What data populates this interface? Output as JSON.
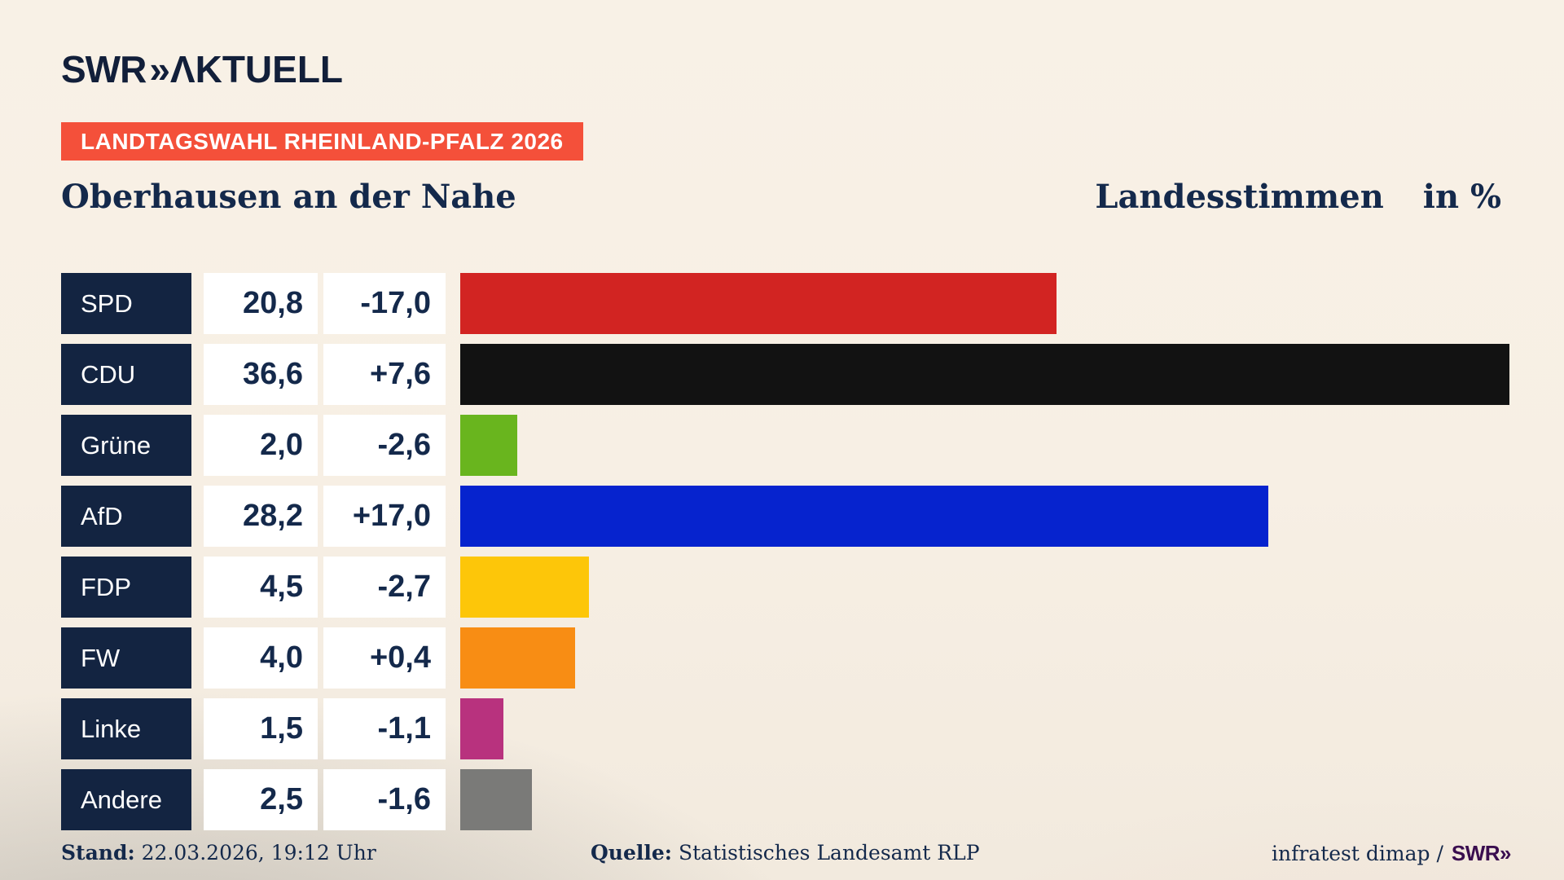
{
  "header": {
    "logo_brand": "SWR",
    "logo_chevrons": "»",
    "logo_suffix": "ΛKTUELL",
    "banner": "LANDTAGSWAHL RHEINLAND-PFALZ 2026",
    "title_left": "Oberhausen an der Nahe",
    "title_right": "Landesstimmen",
    "title_unit": "in %"
  },
  "chart_data": {
    "type": "bar",
    "orientation": "horizontal",
    "title": "Oberhausen an der Nahe",
    "subtitle": "Landesstimmen in %",
    "categories": [
      "SPD",
      "CDU",
      "Grüne",
      "AfD",
      "FDP",
      "FW",
      "Linke",
      "Andere"
    ],
    "values": [
      20.8,
      36.6,
      2.0,
      28.2,
      4.5,
      4.0,
      1.5,
      2.5
    ],
    "changes": [
      -17.0,
      7.6,
      -2.6,
      17.0,
      -2.7,
      0.4,
      -1.1,
      -1.6
    ],
    "value_labels": [
      "20,8",
      "36,6",
      "2,0",
      "28,2",
      "4,5",
      "4,0",
      "1,5",
      "2,5"
    ],
    "change_labels": [
      "-17,0",
      "+7,6",
      "-2,6",
      "+17,0",
      "-2,7",
      "+0,4",
      "-1,1",
      "-1,6"
    ],
    "bar_colors": [
      "#d22422",
      "#121212",
      "#69b51e",
      "#0623ce",
      "#fdc609",
      "#f88d14",
      "#b8327e",
      "#7a7a78"
    ],
    "xlim": [
      0,
      36.6
    ],
    "grid": false,
    "legend": false
  },
  "footer": {
    "stand_label": "Stand:",
    "stand_value": "22.03.2026, 19:12 Uhr",
    "quelle_label": "Quelle:",
    "quelle_value": "Statistisches Landesamt RLP",
    "credit_text": "infratest dimap /",
    "credit_logo": "SWR»"
  },
  "colors": {
    "background_cream": "#f7efe4",
    "banner_red": "#f4503a",
    "navy_text": "#14294b",
    "party_box_navy": "#132441",
    "value_box_white": "#ffffff",
    "swr_purple": "#3a0d4f"
  }
}
